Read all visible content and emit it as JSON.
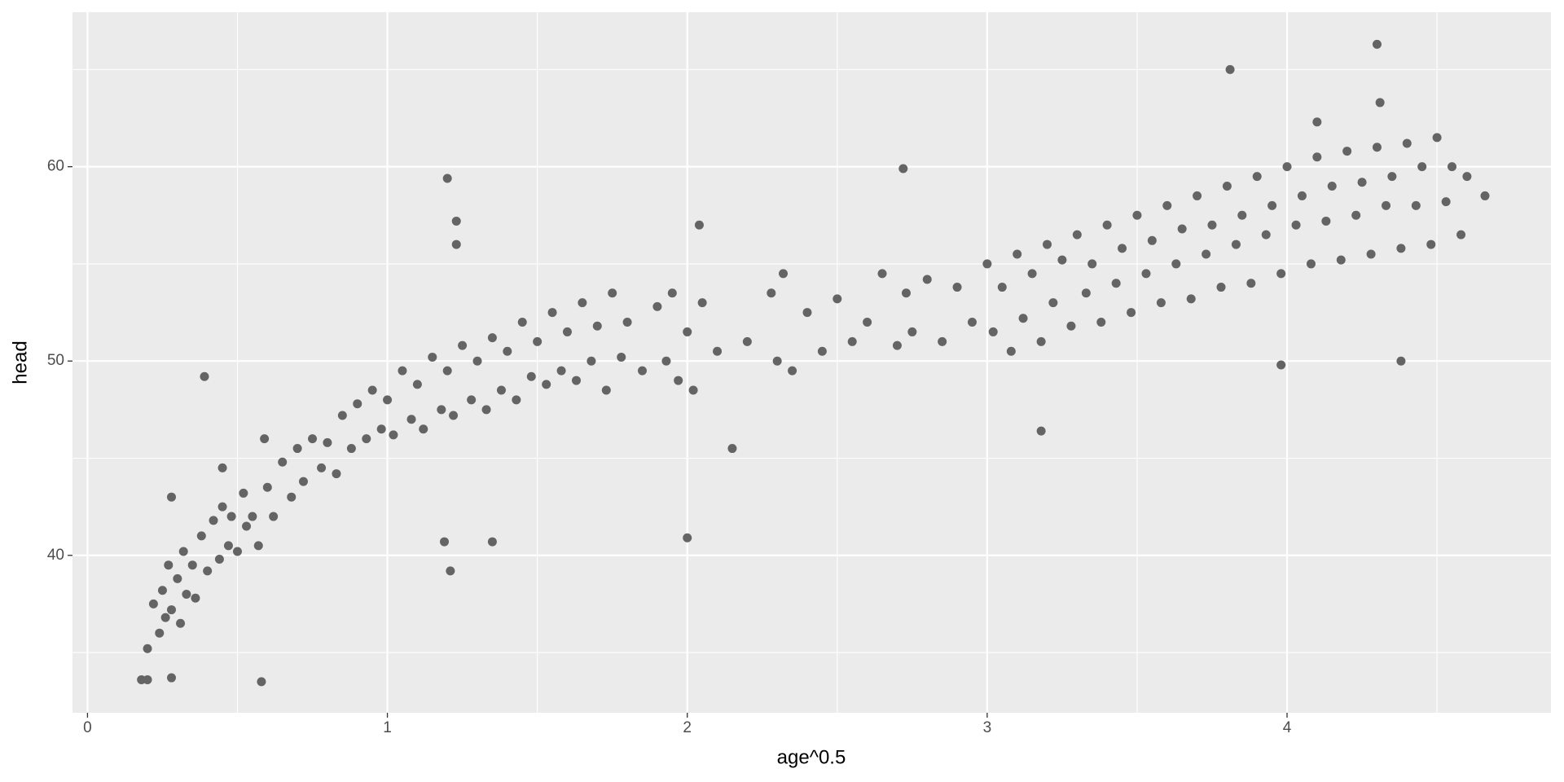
{
  "chart_data": {
    "type": "scatter",
    "x_label": "age^0.5",
    "y_label": "head",
    "color": "#646464",
    "background": "#ebebeb",
    "grid": true,
    "xlim": [
      -0.05,
      4.88
    ],
    "ylim": [
      31.9,
      67.95
    ],
    "xticks": [
      0,
      1,
      2,
      3,
      4
    ],
    "yticks": [
      40,
      50,
      60
    ],
    "minor_xticks": [
      0.5,
      1.5,
      2.5,
      3.5,
      4.5
    ],
    "minor_yticks": [
      35,
      45,
      55,
      65
    ],
    "x": [
      0.2,
      0.22,
      0.24,
      0.25,
      0.26,
      0.27,
      0.28,
      0.3,
      0.31,
      0.32,
      0.33,
      0.35,
      0.36,
      0.38,
      0.4,
      0.42,
      0.44,
      0.45,
      0.47,
      0.48,
      0.5,
      0.52,
      0.53,
      0.55,
      0.57,
      0.6,
      0.62,
      0.65,
      0.68,
      0.7,
      0.72,
      0.75,
      0.78,
      0.8,
      0.83,
      0.85,
      0.88,
      0.9,
      0.93,
      0.95,
      0.98,
      1.0,
      1.02,
      1.05,
      1.08,
      1.1,
      1.12,
      1.15,
      1.18,
      1.2,
      1.22,
      1.25,
      1.28,
      1.3,
      1.33,
      1.35,
      1.38,
      1.4,
      1.43,
      1.45,
      1.48,
      1.5,
      1.53,
      1.55,
      1.58,
      1.6,
      1.63,
      1.65,
      1.68,
      1.7,
      1.73,
      1.75,
      1.78,
      1.8,
      1.85,
      1.9,
      1.93,
      1.95,
      1.97,
      2.0,
      2.02,
      2.05,
      2.1,
      2.2,
      2.28,
      2.3,
      2.32,
      2.35,
      2.4,
      2.45,
      2.5,
      2.55,
      2.6,
      2.65,
      2.7,
      2.73,
      2.75,
      2.8,
      2.85,
      2.9,
      2.95,
      3.0,
      3.02,
      3.05,
      3.08,
      3.1,
      3.12,
      3.15,
      3.18,
      3.2,
      3.22,
      3.25,
      3.28,
      3.3,
      3.33,
      3.35,
      3.38,
      3.4,
      3.43,
      3.45,
      3.48,
      3.5,
      3.53,
      3.55,
      3.58,
      3.6,
      3.63,
      3.65,
      3.68,
      3.7,
      3.73,
      3.75,
      3.78,
      3.8,
      3.83,
      3.85,
      3.88,
      3.9,
      3.93,
      3.95,
      3.98,
      4.0,
      4.03,
      4.05,
      4.08,
      4.1,
      4.13,
      4.15,
      4.18,
      4.2,
      4.23,
      4.25,
      4.28,
      4.3,
      4.33,
      4.35,
      4.38,
      4.4,
      4.43,
      4.45,
      4.48,
      4.5,
      4.53,
      4.55,
      4.58,
      4.6,
      0.39,
      1.2,
      1.23,
      1.23,
      2.72,
      3.81,
      4.3,
      4.31,
      4.38,
      2.0,
      0.58,
      0.18,
      0.2,
      0.28,
      1.21,
      1.19,
      1.35,
      0.28,
      0.45,
      0.59,
      2.04,
      4.66,
      3.18,
      3.98,
      4.1,
      2.15
    ],
    "values": [
      35.2,
      37.5,
      36.0,
      38.2,
      36.8,
      39.5,
      37.2,
      38.8,
      36.5,
      40.2,
      38.0,
      39.5,
      37.8,
      41.0,
      39.2,
      41.8,
      39.8,
      42.5,
      40.5,
      42.0,
      40.2,
      43.2,
      41.5,
      42.0,
      40.5,
      43.5,
      42.0,
      44.8,
      43.0,
      45.5,
      43.8,
      46.0,
      44.5,
      45.8,
      44.2,
      47.2,
      45.5,
      47.8,
      46.0,
      48.5,
      46.5,
      48.0,
      46.2,
      49.5,
      47.0,
      48.8,
      46.5,
      50.2,
      47.5,
      49.5,
      47.2,
      50.8,
      48.0,
      50.0,
      47.5,
      51.2,
      48.5,
      50.5,
      48.0,
      52.0,
      49.2,
      51.0,
      48.8,
      52.5,
      49.5,
      51.5,
      49.0,
      53.0,
      50.0,
      51.8,
      48.5,
      53.5,
      50.2,
      52.0,
      49.5,
      52.8,
      50.0,
      53.5,
      49.0,
      51.5,
      48.5,
      53.0,
      50.5,
      51.0,
      53.5,
      50.0,
      54.5,
      49.5,
      52.5,
      50.5,
      53.2,
      51.0,
      52.0,
      54.5,
      50.8,
      53.5,
      51.5,
      54.2,
      51.0,
      53.8,
      52.0,
      55.0,
      51.5,
      53.8,
      50.5,
      55.5,
      52.2,
      54.5,
      51.0,
      56.0,
      53.0,
      55.2,
      51.8,
      56.5,
      53.5,
      55.0,
      52.0,
      57.0,
      54.0,
      55.8,
      52.5,
      57.5,
      54.5,
      56.2,
      53.0,
      58.0,
      55.0,
      56.8,
      53.2,
      58.5,
      55.5,
      57.0,
      53.8,
      59.0,
      56.0,
      57.5,
      54.0,
      59.5,
      56.5,
      58.0,
      54.5,
      60.0,
      57.0,
      58.5,
      55.0,
      60.5,
      57.2,
      59.0,
      55.2,
      60.8,
      57.5,
      59.2,
      55.5,
      61.0,
      58.0,
      59.5,
      55.8,
      61.2,
      58.0,
      60.0,
      56.0,
      61.5,
      58.2,
      60.0,
      56.5,
      59.5,
      49.2,
      59.4,
      57.2,
      56.0,
      59.9,
      65.0,
      66.3,
      63.3,
      50.0,
      40.9,
      33.5,
      33.6,
      33.6,
      33.7,
      39.2,
      40.7,
      40.7,
      43.0,
      44.5,
      46.0,
      57.0,
      58.5,
      46.4,
      49.8,
      62.3,
      45.5
    ]
  }
}
